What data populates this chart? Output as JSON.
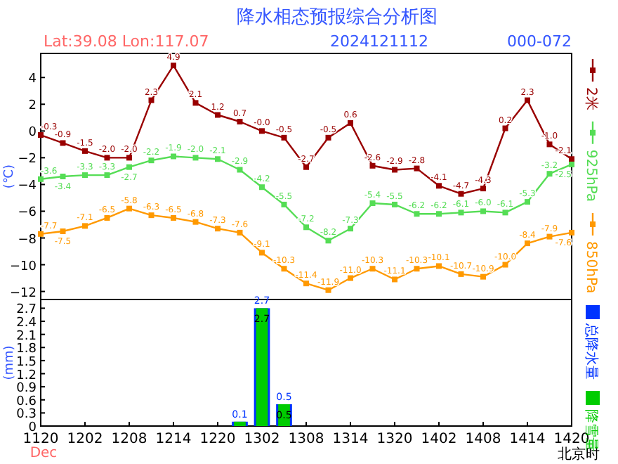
{
  "chart_data": [
    {
      "type": "line",
      "title": "降水相态预报综合分析图",
      "subtitle": "Lat:39.08 Lon:117.07",
      "annotations": [
        "2024121112",
        "000-072"
      ],
      "ylabel": "(℃)",
      "categories": [
        "1120",
        null,
        "1202",
        null,
        "1208",
        null,
        "1214",
        null,
        "1220",
        null,
        "1302",
        null,
        "1308",
        null,
        "1314",
        null,
        "1320",
        null,
        "1402",
        null,
        "1408",
        null,
        "1414",
        null,
        "1420"
      ],
      "tick_labels": "y",
      "ylim": [
        -12.6,
        5.8
      ],
      "yticks": [
        4,
        2,
        0,
        -2,
        -4,
        -6,
        -8,
        -10,
        -12
      ],
      "marker": "square",
      "legend": "right",
      "series": [
        {
          "name": "2米",
          "color": "#990000",
          "values": [
            -0.3,
            -0.9,
            -1.5,
            -2.0,
            -2.0,
            2.3,
            4.9,
            2.1,
            1.2,
            0.7,
            -0.0,
            -0.5,
            -2.7,
            -0.5,
            0.6,
            -2.6,
            -2.9,
            -2.8,
            -4.1,
            -4.7,
            -4.3,
            0.2,
            2.3,
            -1.0,
            -2.1
          ],
          "value_labels": [
            "-0.3",
            "-0.9",
            "-1.5",
            "-2.0",
            "-2.0",
            "2.3",
            "4.9",
            "2.1",
            "1.2",
            "0.7",
            "-0.0",
            "-0.5",
            "-2.7",
            "-0.5",
            "0.6",
            "-2.6",
            "-2.9",
            "-2.8",
            "-4.1",
            "-4.7",
            "-4.3",
            "0.2",
            "2.3",
            "-1.0",
            "-2.1"
          ]
        },
        {
          "name": "925hPa",
          "color": "#55dd55",
          "values": [
            -3.6,
            -3.4,
            -3.3,
            -3.3,
            -2.7,
            -2.2,
            -1.9,
            -2.0,
            -2.1,
            -2.9,
            -4.2,
            -5.5,
            -7.2,
            -8.2,
            -7.3,
            -5.4,
            -5.5,
            -6.2,
            -6.2,
            -6.1,
            -6.0,
            -6.1,
            -5.3,
            -3.2,
            -2.5
          ],
          "value_labels": [
            "-3.6",
            "-3.4",
            "-3.3",
            "-3.3",
            "-2.7",
            "-2.2",
            "-1.9",
            "-2.0",
            "-2.1",
            "-2.9",
            "-4.2",
            "-5.5",
            "-7.2",
            "-8.2",
            "-7.3",
            "-5.4",
            "-5.5",
            "-6.2",
            "-6.2",
            "-6.1",
            "-6.0",
            "-6.1",
            "-5.3",
            "-3.2",
            "-2.5"
          ]
        },
        {
          "name": "850hPa",
          "color": "#ff9900",
          "values": [
            -7.7,
            -7.5,
            -7.1,
            -6.5,
            -5.8,
            -6.3,
            -6.5,
            -6.8,
            -7.3,
            -7.6,
            -9.1,
            -10.3,
            -11.4,
            -11.9,
            -11.0,
            -10.3,
            -11.1,
            -10.3,
            -10.1,
            -10.7,
            -10.9,
            -10.0,
            -8.4,
            -7.9,
            -7.6
          ],
          "value_labels": [
            "-7.7",
            "-7.5",
            "-7.1",
            "-6.5",
            "-5.8",
            "-6.3",
            "-6.5",
            "-6.8",
            "-7.3",
            "-7.6",
            "-9.1",
            "-10.3",
            "-11.4",
            "-11.9",
            "-11.0",
            "-10.3",
            "-11.1",
            "-10.3",
            "-10.1",
            "-10.7",
            "-10.9",
            "-10.0",
            "-8.4",
            "-7.9",
            "-7.6"
          ]
        }
      ]
    },
    {
      "type": "bar",
      "ylabel": "(mm)",
      "annotations": [
        "Dec",
        "北京时"
      ],
      "categories": [
        "1120",
        null,
        "1202",
        null,
        "1208",
        null,
        "1214",
        null,
        "1220",
        null,
        "1302",
        null,
        "1308",
        null,
        "1314",
        null,
        "1320",
        null,
        "1402",
        null,
        "1408",
        null,
        "1414",
        null,
        "1420"
      ],
      "ylim": [
        0,
        2.9
      ],
      "yticks": [
        0,
        0.3,
        0.6,
        0.9,
        1.2,
        1.5,
        1.8,
        2.1,
        2.4,
        2.7
      ],
      "legend": "right",
      "series": [
        {
          "name": "总降水量",
          "color": "#0033ff",
          "values": [
            null,
            null,
            null,
            null,
            null,
            null,
            null,
            null,
            null,
            0.1,
            2.7,
            0.5,
            null,
            null,
            null,
            null,
            null,
            null,
            null,
            null,
            null,
            null,
            null,
            null,
            null
          ],
          "value_labels": [
            null,
            null,
            null,
            null,
            null,
            null,
            null,
            null,
            null,
            "0.1",
            "2.7",
            "0.5",
            null,
            null,
            null,
            null,
            null,
            null,
            null,
            null,
            null,
            null,
            null,
            null,
            null
          ]
        },
        {
          "name": "降雪量",
          "color": "#00cc00",
          "values": [
            null,
            null,
            null,
            null,
            null,
            null,
            null,
            null,
            null,
            0.1,
            2.7,
            0.5,
            null,
            null,
            null,
            null,
            null,
            null,
            null,
            null,
            null,
            null,
            null,
            null,
            null
          ],
          "value_labels": [
            null,
            null,
            null,
            null,
            null,
            null,
            null,
            null,
            null,
            null,
            "2.7",
            "0.5",
            null,
            null,
            null,
            null,
            null,
            null,
            null,
            null,
            null,
            null,
            null,
            null,
            null
          ]
        }
      ]
    }
  ]
}
